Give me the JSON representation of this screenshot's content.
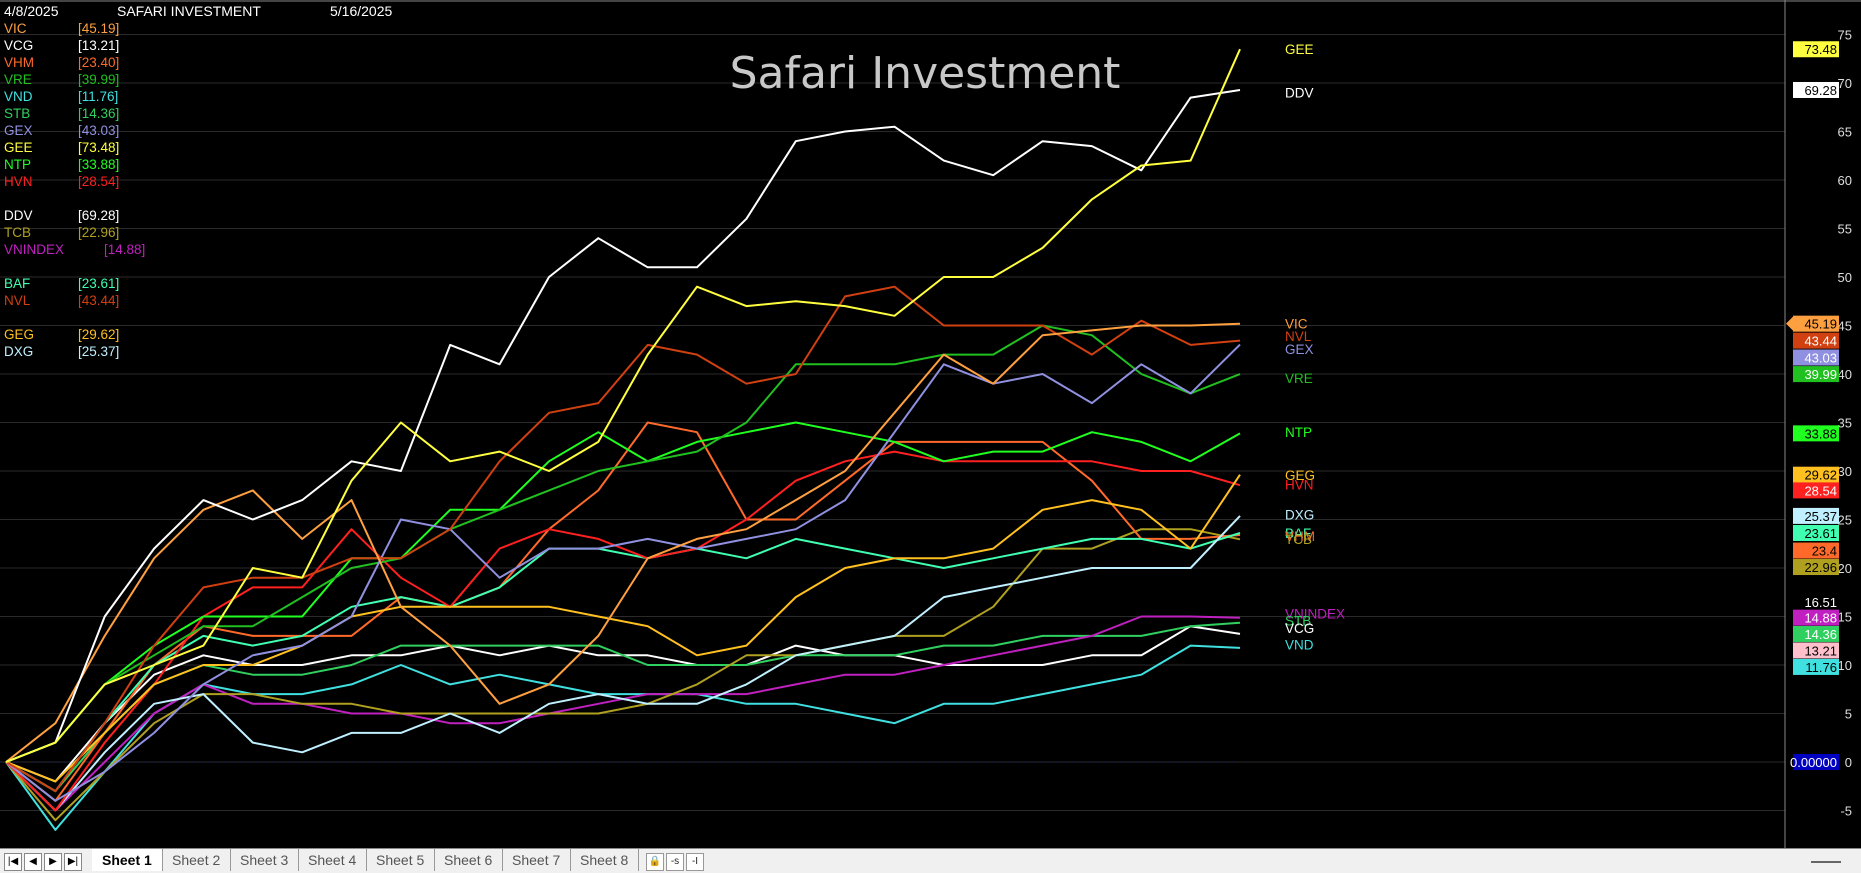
{
  "header": {
    "start_date": "4/8/2025",
    "name": "SAFARI INVESTMENT",
    "end_date": "5/16/2025"
  },
  "legend": [
    {
      "name": "VIC",
      "value": "[45.19]",
      "color": "#ffa040"
    },
    {
      "name": "VCG",
      "value": "[13.21]",
      "color": "#ffffff"
    },
    {
      "name": "VHM",
      "value": "[23.40]",
      "color": "#ff6a2a"
    },
    {
      "name": "VRE",
      "value": "[39.99]",
      "color": "#20c020"
    },
    {
      "name": "VND",
      "value": "[11.76]",
      "color": "#40e0e0"
    },
    {
      "name": "STB",
      "value": "[14.36]",
      "color": "#30d060"
    },
    {
      "name": "GEX",
      "value": "[43.03]",
      "color": "#9090e0"
    },
    {
      "name": "GEE",
      "value": "[73.48]",
      "color": "#ffff40"
    },
    {
      "name": "NTP",
      "value": "[33.88]",
      "color": "#20ff20"
    },
    {
      "name": "HVN",
      "value": "[28.54]",
      "color": "#ff2020"
    },
    {
      "gap": true
    },
    {
      "name": "DDV",
      "value": "[69.28]",
      "color": "#ffffff"
    },
    {
      "name": "TCB",
      "value": "[22.96]",
      "color": "#b0a020"
    },
    {
      "name": "VNINDEX",
      "value": "[14.88]",
      "color": "#c020c0"
    },
    {
      "gap": true
    },
    {
      "name": "BAF",
      "value": "[23.61]",
      "color": "#40ffb0"
    },
    {
      "name": "NVL",
      "value": "[43.44]",
      "color": "#d04010"
    },
    {
      "gap": true
    },
    {
      "name": "GEG",
      "value": "[29.62]",
      "color": "#ffc020"
    },
    {
      "name": "DXG",
      "value": "[25.37]",
      "color": "#c0f0ff"
    }
  ],
  "chart_data": {
    "type": "line",
    "title": "Safari Investment",
    "ylim": [
      -7,
      77
    ],
    "yticks": [
      -5,
      0,
      5,
      10,
      15,
      20,
      25,
      30,
      35,
      40,
      45,
      50,
      55,
      60,
      65,
      70,
      75
    ],
    "grid": true,
    "series": [
      {
        "name": "GEE",
        "color": "#ffff40",
        "values": [
          0,
          2,
          8,
          10,
          12,
          20,
          19,
          29,
          35,
          31,
          32,
          30,
          33,
          42,
          49,
          47,
          47.5,
          47,
          46,
          50,
          50,
          53,
          58,
          61.5,
          62,
          73.48
        ]
      },
      {
        "name": "DDV",
        "color": "#ffffff",
        "values": [
          0,
          2,
          15,
          22,
          27,
          25,
          27,
          31,
          30,
          43,
          41,
          50,
          54,
          51,
          51,
          56,
          64,
          65,
          65.5,
          62,
          60.5,
          64,
          63.5,
          61,
          68.5,
          69.28
        ]
      },
      {
        "name": "VIC",
        "color": "#ffa040",
        "values": [
          0,
          4,
          13,
          21,
          26,
          28,
          23,
          27,
          16,
          12,
          6,
          8,
          13,
          21,
          23,
          24,
          27,
          30,
          36,
          42,
          39,
          44,
          44.5,
          45,
          45,
          45.19
        ]
      },
      {
        "name": "NVL",
        "color": "#d04010",
        "values": [
          0,
          -3,
          4,
          12,
          18,
          19,
          19,
          21,
          21,
          24,
          31,
          36,
          37,
          43,
          42,
          39,
          40,
          48,
          49,
          45,
          45,
          45,
          42,
          45.5,
          43,
          43.44
        ]
      },
      {
        "name": "GEX",
        "color": "#9090e0",
        "values": [
          0,
          -4,
          -1,
          3,
          8,
          11,
          12,
          15,
          25,
          24,
          19,
          22,
          22,
          23,
          22,
          23,
          24,
          27,
          34,
          41,
          39,
          40,
          37,
          41,
          38,
          43.03
        ]
      },
      {
        "name": "VRE",
        "color": "#20c020",
        "values": [
          0,
          2,
          8,
          11,
          14,
          14,
          17,
          20,
          21,
          24,
          26,
          28,
          30,
          31,
          32,
          35,
          41,
          41,
          41,
          42,
          42,
          45,
          44,
          40,
          38,
          39.99
        ]
      },
      {
        "name": "NTP",
        "color": "#20ff20",
        "values": [
          0,
          2,
          8,
          12,
          15,
          15,
          15,
          21,
          21,
          26,
          26,
          31,
          34,
          31,
          33,
          34,
          35,
          34,
          33,
          31,
          32,
          32,
          34,
          33,
          31,
          33.88
        ]
      },
      {
        "name": "GEG",
        "color": "#ffc020",
        "values": [
          0,
          -2,
          3,
          8,
          10,
          10,
          12,
          15,
          16,
          16,
          16,
          16,
          15,
          14,
          11,
          12,
          17,
          20,
          21,
          21,
          22,
          26,
          27,
          26,
          22,
          29.62
        ]
      },
      {
        "name": "HVN",
        "color": "#ff2020",
        "values": [
          0,
          -5,
          2,
          8,
          15,
          18,
          18,
          24,
          19,
          16,
          22,
          24,
          23,
          21,
          22,
          25,
          29,
          31,
          32,
          31,
          31,
          31,
          31,
          30,
          30,
          28.54
        ]
      },
      {
        "name": "DXG",
        "color": "#c0f0ff",
        "values": [
          0,
          -5,
          1,
          6,
          7,
          2,
          1,
          3,
          3,
          5,
          3,
          6,
          7,
          6,
          6,
          8,
          11,
          12,
          13,
          17,
          18,
          19,
          20,
          20,
          20,
          25.37
        ]
      },
      {
        "name": "BAF",
        "color": "#40ffb0",
        "values": [
          0,
          -3,
          4,
          10,
          13,
          12,
          13,
          16,
          17,
          16,
          18,
          22,
          22,
          21,
          22,
          21,
          23,
          22,
          21,
          20,
          21,
          22,
          23,
          23,
          22,
          23.61
        ]
      },
      {
        "name": "VHM",
        "color": "#ff6a2a",
        "values": [
          0,
          -4,
          3,
          10,
          14,
          13,
          13,
          13,
          17,
          16,
          18,
          24,
          28,
          35,
          34,
          25,
          25,
          29,
          33,
          33,
          33,
          33,
          29,
          23,
          23,
          23.4
        ]
      },
      {
        "name": "TCB",
        "color": "#b0a020",
        "values": [
          0,
          -6,
          -1,
          4,
          7,
          7,
          6,
          6,
          5,
          5,
          5,
          5,
          5,
          6,
          8,
          11,
          11,
          12,
          13,
          13,
          16,
          22,
          22,
          24,
          24,
          22.96
        ]
      },
      {
        "name": "VNINDEX",
        "color": "#c020c0",
        "values": [
          0,
          -5,
          0,
          5,
          8,
          6,
          6,
          5,
          5,
          4,
          4,
          5,
          6,
          7,
          7,
          7,
          8,
          9,
          9,
          10,
          11,
          12,
          13,
          15,
          15,
          14.88
        ]
      },
      {
        "name": "STB",
        "color": "#30d060",
        "values": [
          0,
          -3,
          3,
          8,
          10,
          9,
          9,
          10,
          12,
          12,
          12,
          12,
          12,
          10,
          10,
          10,
          11,
          11,
          11,
          12,
          12,
          13,
          13,
          13,
          14,
          14.36
        ]
      },
      {
        "name": "VCG",
        "color": "#ffffff",
        "values": [
          0,
          -2,
          4,
          9,
          11,
          10,
          10,
          11,
          11,
          12,
          11,
          12,
          11,
          11,
          10,
          10,
          12,
          11,
          11,
          10,
          10,
          10,
          11,
          11,
          14,
          13.21
        ]
      },
      {
        "name": "VND",
        "color": "#40e0e0",
        "values": [
          0,
          -7,
          -1,
          5,
          8,
          7,
          7,
          8,
          10,
          8,
          9,
          8,
          7,
          7,
          7,
          6,
          6,
          5,
          4,
          6,
          6,
          7,
          8,
          9,
          12,
          11.76
        ]
      }
    ],
    "right_labels": [
      {
        "name": "GEE",
        "color": "#ffff40",
        "y": 73.5
      },
      {
        "name": "DDV",
        "color": "#ffffff",
        "y": 69.0
      },
      {
        "name": "VIC",
        "color": "#ffa040",
        "y": 45.2
      },
      {
        "name": "NVL",
        "color": "#d04010",
        "y": 43.9
      },
      {
        "name": "GEX",
        "color": "#9090e0",
        "y": 42.6
      },
      {
        "name": "VRE",
        "color": "#20c020",
        "y": 39.6
      },
      {
        "name": "NTP",
        "color": "#20ff20",
        "y": 34.0
      },
      {
        "name": "GEG",
        "color": "#ffc020",
        "y": 29.6
      },
      {
        "name": "HVN",
        "color": "#ff2020",
        "y": 28.6
      },
      {
        "name": "DXG",
        "color": "#c0f0ff",
        "y": 25.5
      },
      {
        "name": "BAF",
        "color": "#40ffb0",
        "y": 23.6
      },
      {
        "name": "VHM",
        "color": "#ff6a2a",
        "y": 23.3
      },
      {
        "name": "TCB",
        "color": "#b0a020",
        "y": 23.0
      },
      {
        "name": "VNINDEX",
        "color": "#c020c0",
        "y": 15.3
      },
      {
        "name": "STB",
        "color": "#30d060",
        "y": 14.6
      },
      {
        "name": "VCG",
        "color": "#ffffff",
        "y": 13.8
      },
      {
        "name": "VND",
        "color": "#40e0e0",
        "y": 12.1
      }
    ],
    "price_tags": [
      {
        "value": "73.48",
        "bg": "#ffff40",
        "fg": "#000",
        "y": 73.48
      },
      {
        "value": "69.28",
        "bg": "#ffffff",
        "fg": "#000",
        "y": 69.28
      },
      {
        "value": "45.19",
        "bg": "#ffa040",
        "fg": "#000",
        "y": 45.19
      },
      {
        "value": "43.44",
        "bg": "#d04010",
        "fg": "#fff",
        "y": 43.44
      },
      {
        "value": "43.03",
        "bg": "#9090e0",
        "fg": "#fff",
        "y": 41.7
      },
      {
        "value": "39.99",
        "bg": "#20c020",
        "fg": "#fff",
        "y": 39.99
      },
      {
        "value": "33.88",
        "bg": "#20ff20",
        "fg": "#000",
        "y": 33.88
      },
      {
        "value": "29.62",
        "bg": "#ffc020",
        "fg": "#000",
        "y": 29.62
      },
      {
        "value": "28.54",
        "bg": "#ff2020",
        "fg": "#fff",
        "y": 28.0
      },
      {
        "value": "25.37",
        "bg": "#c0f0ff",
        "fg": "#000",
        "y": 25.37
      },
      {
        "value": "23.61",
        "bg": "#40ffb0",
        "fg": "#000",
        "y": 23.61
      },
      {
        "value": "23.4",
        "bg": "#ff6a2a",
        "fg": "#000",
        "y": 21.8
      },
      {
        "value": "22.96",
        "bg": "#b0a020",
        "fg": "#000",
        "y": 20.1
      },
      {
        "value": "16.51",
        "bg": "#000000",
        "fg": "#fff",
        "y": 16.51
      },
      {
        "value": "14.88",
        "bg": "#c020c0",
        "fg": "#fff",
        "y": 14.88
      },
      {
        "value": "14.36",
        "bg": "#30d060",
        "fg": "#fff",
        "y": 13.2
      },
      {
        "value": "13.21",
        "bg": "#ffc0cc",
        "fg": "#000",
        "y": 11.5
      },
      {
        "value": "11.76",
        "bg": "#40e0e0",
        "fg": "#000",
        "y": 9.8
      },
      {
        "value": "0.00000",
        "bg": "#0000c0",
        "fg": "#fff",
        "y": 0
      }
    ]
  },
  "tabs": {
    "nav": [
      "|◀",
      "◀",
      "▶",
      "▶|"
    ],
    "sheets": [
      "Sheet 1",
      "Sheet 2",
      "Sheet 3",
      "Sheet 4",
      "Sheet 5",
      "Sheet 6",
      "Sheet 7",
      "Sheet 8"
    ],
    "active": 0,
    "extras": [
      "🔒",
      "-s",
      "-I"
    ]
  }
}
